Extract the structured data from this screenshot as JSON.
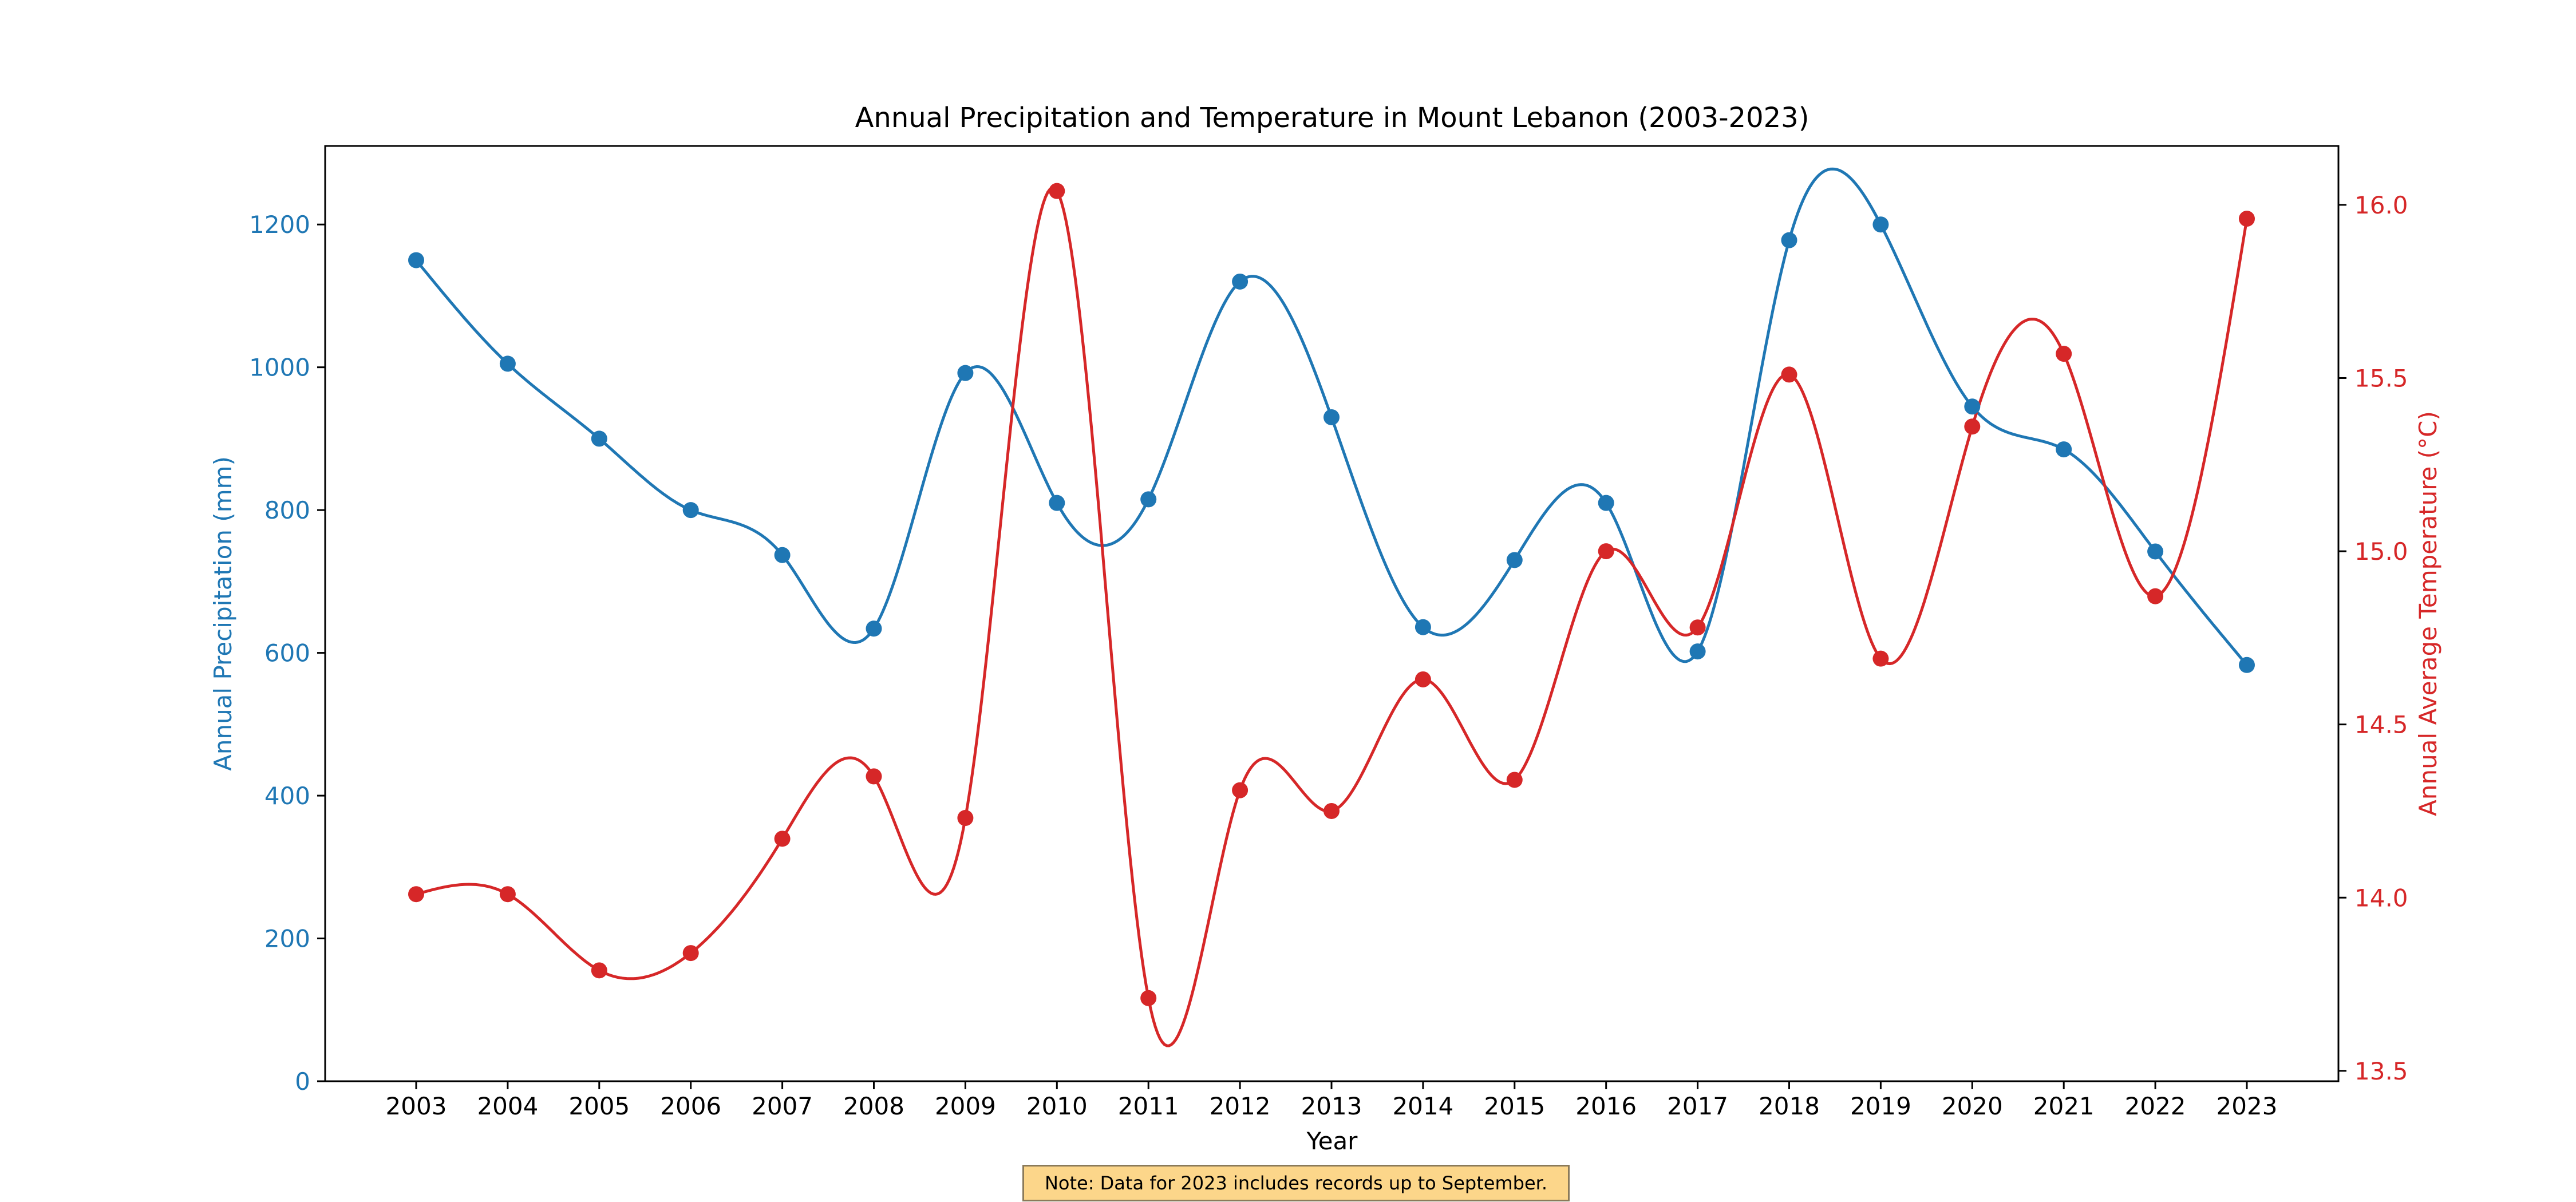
{
  "chart_data": {
    "type": "line",
    "title": "Annual Precipitation and Temperature in Mount Lebanon (2003-2023)",
    "xlabel": "Year",
    "categories": [
      "2003",
      "2004",
      "2005",
      "2006",
      "2007",
      "2008",
      "2009",
      "2010",
      "2011",
      "2012",
      "2013",
      "2014",
      "2015",
      "2016",
      "2017",
      "2018",
      "2019",
      "2020",
      "2021",
      "2022",
      "2023"
    ],
    "y_left": {
      "label": "Annual Precipitation (mm)",
      "range": [
        0,
        1310
      ],
      "ticks": [
        0,
        200,
        400,
        600,
        800,
        1000,
        1200
      ]
    },
    "y_right": {
      "label": "Annual Average Temperature (°C)",
      "range": [
        13.47,
        16.17
      ],
      "ticks": [
        "13.5",
        "14.0",
        "14.5",
        "15.0",
        "15.5",
        "16.0"
      ]
    },
    "series": [
      {
        "axis": "left",
        "color": "#1f77b4",
        "values": [
          1150,
          1005,
          900,
          800,
          737,
          634,
          992,
          810,
          815,
          1120,
          930,
          636,
          730,
          810,
          602,
          1178,
          1200,
          945,
          885,
          742,
          583
        ]
      },
      {
        "axis": "right",
        "color": "#d62728",
        "values": [
          14.01,
          14.01,
          13.79,
          13.84,
          14.17,
          14.35,
          14.23,
          16.04,
          13.71,
          14.31,
          14.25,
          14.63,
          14.34,
          15.0,
          14.78,
          15.51,
          14.69,
          15.36,
          15.57,
          14.87,
          15.96
        ]
      }
    ],
    "grid": false,
    "legend": "none"
  },
  "note": "Note: Data for 2023 includes records up to September.",
  "colors": {
    "precip": "#1f77b4",
    "temp": "#d62728",
    "axis": "#000000"
  }
}
